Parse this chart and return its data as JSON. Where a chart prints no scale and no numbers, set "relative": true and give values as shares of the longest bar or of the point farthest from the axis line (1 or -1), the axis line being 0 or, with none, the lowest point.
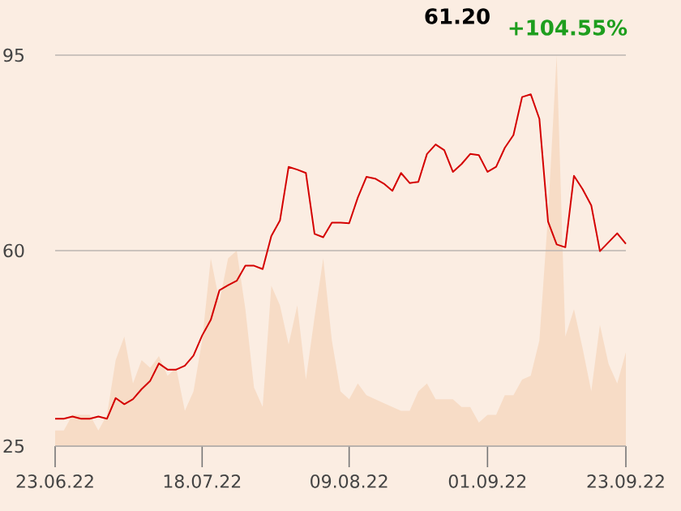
{
  "chart_data": [
    {
      "type": "line",
      "color": "#d40000",
      "categories": [
        "23.06.22",
        null,
        null,
        null,
        null,
        null,
        null,
        null,
        null,
        null,
        null,
        null,
        null,
        null,
        null,
        null,
        null,
        "18.07.22",
        null,
        null,
        null,
        null,
        null,
        null,
        null,
        null,
        null,
        null,
        null,
        null,
        null,
        null,
        null,
        null,
        "09.08.22",
        null,
        null,
        null,
        null,
        null,
        null,
        null,
        null,
        null,
        null,
        null,
        null,
        null,
        null,
        null,
        "01.09.22",
        null,
        null,
        null,
        null,
        null,
        null,
        null,
        null,
        null,
        null,
        null,
        null,
        null,
        null,
        null,
        "23.09.22"
      ],
      "values": [
        29.9,
        29.9,
        30.3,
        29.9,
        29.9,
        30.3,
        29.9,
        33.6,
        32.5,
        33.4,
        35.2,
        36.7,
        39.8,
        38.7,
        38.7,
        39.4,
        41.2,
        44.8,
        47.6,
        52.9,
        53.8,
        54.6,
        57.3,
        57.3,
        56.7,
        62.6,
        65.4,
        75.0,
        74.5,
        73.9,
        63.0,
        62.4,
        65.0,
        65.0,
        64.9,
        69.5,
        73.2,
        72.9,
        72.0,
        70.7,
        73.9,
        72.1,
        72.3,
        77.3,
        79.0,
        78.0,
        74.1,
        75.5,
        77.3,
        77.1,
        74.1,
        75.0,
        78.4,
        80.7,
        87.5,
        88.0,
        83.6,
        65.2,
        61.1,
        60.6,
        73.4,
        71.0,
        68.1,
        59.9,
        61.5,
        63.1,
        61.2
      ],
      "ylim": [
        25,
        95
      ],
      "yticks": [
        25,
        60,
        95
      ],
      "grid": "y",
      "annotations": [
        "61.20",
        "+104.55%"
      ]
    },
    {
      "type": "area",
      "color": "#f7dcc6",
      "relative": true,
      "categories": [
        null,
        null,
        null,
        null,
        null,
        null,
        null,
        null,
        null,
        null,
        null,
        null,
        null,
        null,
        null,
        null,
        null,
        null,
        null,
        null,
        null,
        null,
        null,
        null,
        null,
        null,
        null,
        null,
        null,
        null,
        null,
        null,
        null,
        null,
        null,
        null,
        null,
        null,
        null,
        null,
        null,
        null,
        null,
        null,
        null,
        null,
        null,
        null,
        null,
        null,
        null,
        null,
        null,
        null,
        null,
        null,
        null,
        null,
        null,
        null,
        null,
        null,
        null,
        null,
        null,
        null,
        null
      ],
      "values": [
        0.04,
        0.04,
        0.08,
        0.08,
        0.08,
        0.04,
        0.08,
        0.22,
        0.28,
        0.16,
        0.22,
        0.2,
        0.23,
        0.18,
        0.2,
        0.09,
        0.14,
        0.27,
        0.48,
        0.37,
        0.48,
        0.5,
        0.35,
        0.15,
        0.1,
        0.41,
        0.36,
        0.26,
        0.36,
        0.17,
        0.33,
        0.48,
        0.27,
        0.14,
        0.12,
        0.16,
        0.13,
        0.12,
        0.11,
        0.1,
        0.09,
        0.09,
        0.14,
        0.16,
        0.12,
        0.12,
        0.12,
        0.1,
        0.1,
        0.06,
        0.08,
        0.08,
        0.13,
        0.13,
        0.17,
        0.18,
        0.27,
        0.59,
        1,
        0.28,
        0.35,
        0.25,
        0.14,
        0.31,
        0.21,
        0.16,
        0.24
      ]
    }
  ]
}
